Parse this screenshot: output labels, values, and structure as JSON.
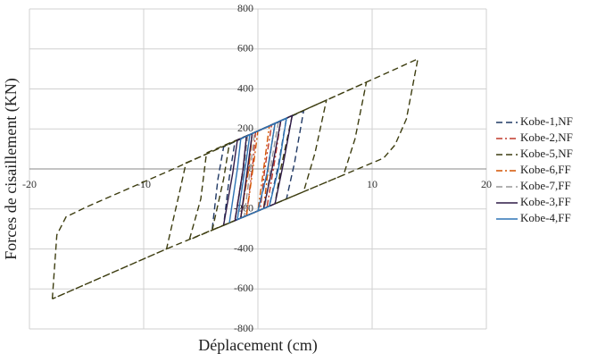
{
  "chart_data": {
    "type": "line",
    "xlabel": "Déplacement (cm)",
    "ylabel": "Forces de cisaillement (KN)",
    "xlim": [
      -20,
      20
    ],
    "xticks": [
      -20,
      -10,
      10,
      20
    ],
    "ylim": [
      -800,
      800
    ],
    "yticks": [
      -800,
      -600,
      -400,
      -200,
      0,
      200,
      400,
      600,
      800
    ],
    "grid": true,
    "legend": "right",
    "series": [
      {
        "name": "Kobe-1,NF",
        "color": "#1f3864",
        "dash": "dashed",
        "x": [
          -4,
          -3.5,
          -3,
          0,
          4,
          3.2,
          2.5,
          0,
          -3,
          -2.5,
          -2,
          0,
          2.5,
          1.8,
          1,
          -2,
          -1.3,
          -1,
          1.5,
          0.8,
          0
        ],
        "values": [
          -300,
          -50,
          110,
          190,
          290,
          30,
          -150,
          -210,
          -282,
          -40,
          140,
          190,
          254,
          20,
          -186,
          -258,
          0,
          164,
          229,
          -30,
          -210
        ]
      },
      {
        "name": "Kobe-2,NF",
        "color": "#c0392b",
        "dash": "dashdot",
        "x": [
          -2,
          -1.3,
          -1,
          0,
          2,
          1.5,
          0.8,
          -1.5,
          -0.8,
          -0.5,
          1.2,
          0.6,
          0.2,
          -1,
          -0.4,
          -0.2,
          0.8
        ],
        "values": [
          -250,
          0,
          164,
          190,
          240,
          50,
          -190,
          -246,
          20,
          177,
          220,
          0,
          -205,
          -234,
          50,
          185,
          210
        ]
      },
      {
        "name": "Kobe-5,NF",
        "color": "#3d3d10",
        "dash": "dashed",
        "x": [
          -18,
          -17.6,
          -16.8,
          -15,
          -8,
          0,
          8,
          14,
          13,
          12,
          11,
          0,
          -8,
          -18,
          -8,
          -6.8,
          -6.3,
          -5,
          0,
          9.5,
          8.5,
          7.5,
          0,
          -6,
          -5,
          -4.5,
          0,
          6,
          5,
          4,
          0,
          -4,
          -3,
          -2.5,
          0,
          3,
          2,
          1.5
        ],
        "values": [
          -650,
          -330,
          -240,
          -190,
          -15,
          190,
          395,
          550,
          250,
          120,
          54,
          -210,
          -400,
          -650,
          -400,
          -100,
          30,
          62,
          190,
          434,
          150,
          -30,
          -210,
          -354,
          -150,
          80,
          190,
          344,
          80,
          -114,
          -210,
          -306,
          -50,
          126,
          190,
          267,
          0,
          -174
        ]
      },
      {
        "name": "Kobe-6,FF",
        "color": "#d35400",
        "dash": "dashdot",
        "x": [
          -1.5,
          -0.8,
          -0.5,
          1.5,
          1,
          0.5,
          -1,
          -0.3,
          0,
          1,
          0.5,
          0
        ],
        "values": [
          -240,
          0,
          177,
          228,
          50,
          -198,
          -234,
          60,
          190,
          215,
          0,
          -210
        ]
      },
      {
        "name": "Kobe-7,FF",
        "color": "#999999",
        "dash": "dashed",
        "x": [
          -2,
          -1.2,
          -0.9,
          1.8,
          1.2,
          0.6,
          -1.2,
          -0.6,
          -0.3,
          1.2
        ],
        "values": [
          -250,
          0,
          167,
          236,
          40,
          -196,
          -240,
          30,
          182,
          220
        ]
      },
      {
        "name": "Kobe-3,FF",
        "color": "#2e1a47",
        "dash": "solid",
        "x": [
          -3,
          -2.2,
          -1.8,
          0,
          3,
          2.2,
          1.5,
          0,
          -2,
          -1.3,
          -1,
          2,
          1.2,
          0.5,
          -1.5,
          -0.8,
          -0.5,
          1
        ],
        "values": [
          -280,
          -20,
          145,
          190,
          267,
          20,
          -174,
          -210,
          -258,
          0,
          164,
          240,
          -10,
          -198,
          -246,
          50,
          177,
          215
        ]
      },
      {
        "name": "Kobe-4,FF",
        "color": "#2e75b6",
        "dash": "solid",
        "x": [
          -2.5,
          -1.8,
          -1.5,
          0,
          2.5,
          1.8,
          1,
          -1.8,
          -1,
          -0.7,
          1.5,
          0.8,
          0
        ],
        "values": [
          -270,
          0,
          150,
          190,
          254,
          0,
          -186,
          -253,
          50,
          172,
          228,
          -20,
          -210
        ]
      }
    ]
  }
}
